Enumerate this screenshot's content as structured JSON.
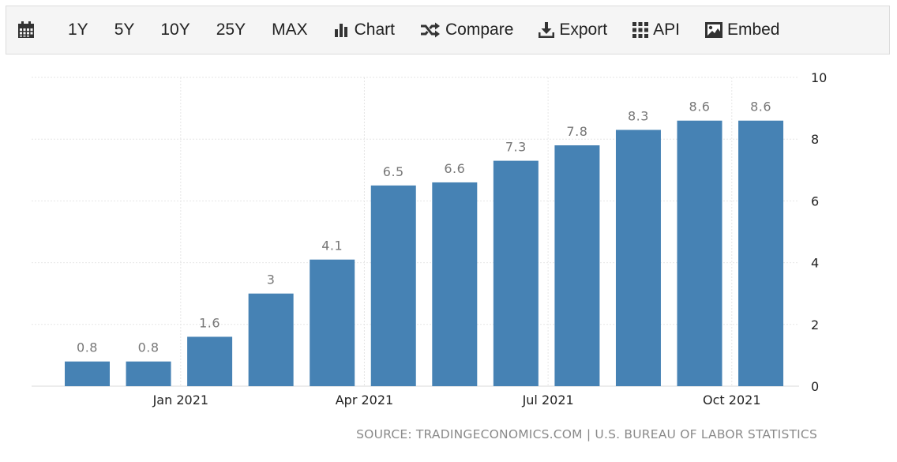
{
  "toolbar": {
    "calendar_icon": "calendar-icon",
    "ranges": [
      "1Y",
      "5Y",
      "10Y",
      "25Y",
      "MAX"
    ],
    "chart_label": "Chart",
    "compare_label": "Compare",
    "export_label": "Export",
    "api_label": "API",
    "embed_label": "Embed"
  },
  "source": "SOURCE: TRADINGECONOMICS.COM | U.S. BUREAU OF LABOR STATISTICS",
  "colors": {
    "bar": "#4682b4",
    "label": "#777777",
    "grid": "#e6e6e6"
  },
  "chart_data": {
    "type": "bar",
    "categories": [
      "",
      "",
      "Jan 2021",
      "",
      "",
      "Apr 2021",
      "",
      "",
      "Jul 2021",
      "",
      "",
      "Oct 2021"
    ],
    "values": [
      0.8,
      0.8,
      1.6,
      3,
      4.1,
      6.5,
      6.6,
      7.3,
      7.8,
      8.3,
      8.6,
      8.6
    ],
    "data_labels": [
      "0.8",
      "0.8",
      "1.6",
      "3",
      "4.1",
      "6.5",
      "6.6",
      "7.3",
      "7.8",
      "8.3",
      "8.6",
      "8.6"
    ],
    "x_tick_labels": [
      "Jan 2021",
      "Apr 2021",
      "Jul 2021",
      "Oct 2021"
    ],
    "y_ticks": [
      0,
      2,
      4,
      6,
      8,
      10
    ],
    "ylim": [
      0,
      10
    ],
    "y_axis_side": "right",
    "grid": true,
    "legend": "none"
  }
}
